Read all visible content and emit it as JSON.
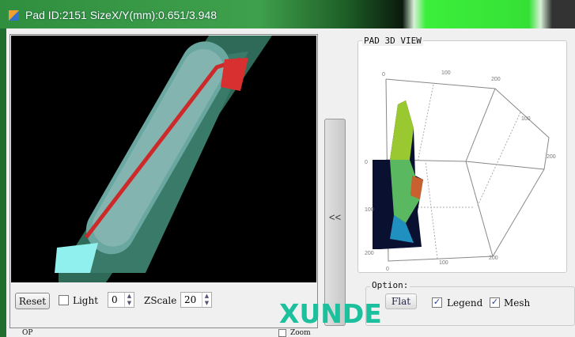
{
  "window": {
    "title": "Pad ID:2151  SizeX/Y(mm):0.651/3.948"
  },
  "left_panel": {
    "reset_label": "Reset",
    "light_label": "Light",
    "light_checked": false,
    "light_value": "0",
    "zscale_label": "ZScale",
    "zscale_value": "20"
  },
  "splitter": {
    "label": "<<"
  },
  "view3d": {
    "group_label": "PAD 3D VIEW",
    "ticks": {
      "top": [
        "0",
        "100",
        "200"
      ],
      "right": [
        "100",
        "200"
      ],
      "left": [
        "0",
        "100",
        "200"
      ],
      "bottom": [
        "0",
        "100",
        "200"
      ]
    }
  },
  "options": {
    "group_label": "Option:",
    "flat_label": "Flat",
    "legend_label": "Legend",
    "legend_checked": true,
    "mesh_label": "Mesh",
    "mesh_checked": true
  },
  "bottom": {
    "op_label": "OP",
    "zoom_label": "Zoom"
  },
  "watermark": "XUNDE"
}
